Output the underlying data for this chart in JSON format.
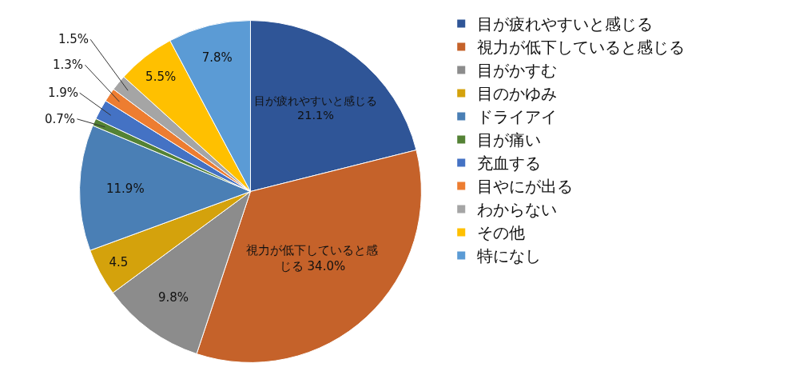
{
  "chart_data": {
    "type": "pie",
    "categories": [
      "目が疲れやすいと感じる",
      "視力が低下していると感じる",
      "目がかすむ",
      "目のかゆみ",
      "ドライアイ",
      "目が痛い",
      "充血する",
      "目やにが出る",
      "わからない",
      "その他",
      "特になし"
    ],
    "values": [
      21.1,
      34.0,
      9.8,
      4.5,
      11.9,
      0.7,
      1.9,
      1.3,
      1.5,
      5.5,
      7.8
    ],
    "colors": [
      "#2f5597",
      "#c5622a",
      "#8c8c8c",
      "#d4a20c",
      "#4a7fb5",
      "#548235",
      "#4472c4",
      "#ed7d31",
      "#a5a5a5",
      "#ffc000",
      "#5b9bd5"
    ],
    "value_labels": [
      "目が疲れやすいと感じる21.1%",
      "視力が低下していると感じる 34.0%",
      "9.8%",
      "4.5",
      "11.9%",
      "0.7%",
      "1.9%",
      "1.3%",
      "1.5%",
      "5.5%",
      "7.8%"
    ],
    "legend": "right"
  }
}
